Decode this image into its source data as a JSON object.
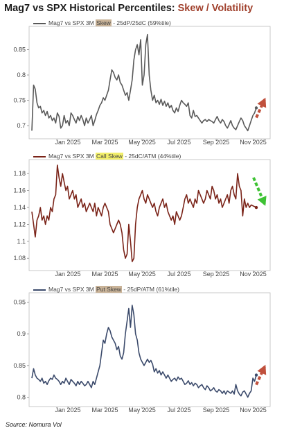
{
  "title_main": "Mag7 vs SPX Historical Percentiles: ",
  "title_highlight": "Skew / Volatility",
  "source": "Source: Nomura Vol",
  "chart_data": [
    {
      "type": "line",
      "legend_pre": "Mag7 vs SPX 3M ",
      "legend_mark": "Skew",
      "legend_post": " - 25dP/25dC (59%tile)",
      "mark_color": "#c9b398",
      "line_color": "#595959",
      "arrow_color": "#c0503c",
      "arrow_dir": "up",
      "xticks": [
        "Jan 2025",
        "Mar 2025",
        "May 2025",
        "Jul 2025",
        "Sep 2025",
        "Nov 2025"
      ],
      "yticks": [
        0.7,
        0.75,
        0.8,
        0.85
      ],
      "ylim": [
        0.685,
        0.885
      ],
      "y": [
        0.69,
        0.78,
        0.772,
        0.745,
        0.735,
        0.738,
        0.725,
        0.73,
        0.72,
        0.728,
        0.715,
        0.72,
        0.71,
        0.715,
        0.705,
        0.725,
        0.718,
        0.695,
        0.7,
        0.72,
        0.705,
        0.71,
        0.7,
        0.725,
        0.72,
        0.712,
        0.705,
        0.718,
        0.71,
        0.72,
        0.712,
        0.7,
        0.715,
        0.705,
        0.712,
        0.72,
        0.7,
        0.71,
        0.722,
        0.73,
        0.74,
        0.745,
        0.755,
        0.75,
        0.76,
        0.77,
        0.79,
        0.81,
        0.805,
        0.795,
        0.79,
        0.8,
        0.785,
        0.78,
        0.77,
        0.76,
        0.765,
        0.75,
        0.77,
        0.79,
        0.83,
        0.85,
        0.86,
        0.84,
        0.87,
        0.78,
        0.8,
        0.86,
        0.88,
        0.8,
        0.77,
        0.75,
        0.76,
        0.745,
        0.75,
        0.742,
        0.752,
        0.74,
        0.748,
        0.738,
        0.745,
        0.735,
        0.74,
        0.73,
        0.725,
        0.735,
        0.728,
        0.74,
        0.75,
        0.745,
        0.742,
        0.738,
        0.745,
        0.72,
        0.715,
        0.73,
        0.718,
        0.72,
        0.715,
        0.71,
        0.705,
        0.71,
        0.712,
        0.708,
        0.712,
        0.71,
        0.708,
        0.705,
        0.712,
        0.718,
        0.71,
        0.705,
        0.712,
        0.708,
        0.7,
        0.695,
        0.702,
        0.71,
        0.7,
        0.695,
        0.692,
        0.7,
        0.708,
        0.715,
        0.71,
        0.7,
        0.695,
        0.69,
        0.7,
        0.71,
        0.72,
        0.725,
        0.735
      ]
    },
    {
      "type": "line",
      "legend_pre": "Mag7 vs SPX 3M ",
      "legend_mark": "Call Skew",
      "legend_post": " - 25dC/ATM (44%tile)",
      "mark_color": "#f2ef6a",
      "line_color": "#7a2318",
      "arrow_color": "#3ec234",
      "arrow_dir": "down",
      "xticks": [
        "Jan 2025",
        "Mar 2025",
        "May 2025",
        "Jul 2025",
        "Sep 2025",
        "Nov 2025"
      ],
      "yticks": [
        1.08,
        1.1,
        1.12,
        1.14,
        1.16,
        1.18
      ],
      "ylim": [
        1.072,
        1.19
      ],
      "y": [
        1.135,
        1.12,
        1.105,
        1.125,
        1.13,
        1.14,
        1.125,
        1.13,
        1.12,
        1.13,
        1.125,
        1.14,
        1.135,
        1.15,
        1.155,
        1.19,
        1.175,
        1.165,
        1.18,
        1.17,
        1.16,
        1.165,
        1.15,
        1.155,
        1.16,
        1.15,
        1.155,
        1.14,
        1.145,
        1.15,
        1.14,
        1.145,
        1.135,
        1.14,
        1.145,
        1.14,
        1.135,
        1.145,
        1.13,
        1.14,
        1.135,
        1.13,
        1.14,
        1.145,
        1.14,
        1.135,
        1.12,
        1.115,
        1.11,
        1.115,
        1.12,
        1.125,
        1.12,
        1.11,
        1.09,
        1.08,
        1.085,
        1.12,
        1.1,
        1.076,
        1.08,
        1.12,
        1.14,
        1.15,
        1.155,
        1.16,
        1.15,
        1.145,
        1.155,
        1.15,
        1.145,
        1.14,
        1.145,
        1.135,
        1.13,
        1.14,
        1.145,
        1.15,
        1.14,
        1.145,
        1.135,
        1.13,
        1.125,
        1.13,
        1.12,
        1.135,
        1.13,
        1.125,
        1.13,
        1.14,
        1.15,
        1.155,
        1.145,
        1.15,
        1.145,
        1.14,
        1.15,
        1.145,
        1.16,
        1.155,
        1.15,
        1.145,
        1.15,
        1.16,
        1.155,
        1.15,
        1.165,
        1.16,
        1.15,
        1.155,
        1.145,
        1.15,
        1.14,
        1.145,
        1.15,
        1.155,
        1.145,
        1.16,
        1.165,
        1.155,
        1.15,
        1.18,
        1.165,
        1.16,
        1.13,
        1.15,
        1.14,
        1.145,
        1.14,
        1.143,
        1.142,
        1.141,
        1.14
      ]
    },
    {
      "type": "line",
      "legend_pre": "Mag7 vs SPX 3M ",
      "legend_mark": "Put Skew",
      "legend_post": " - 25dP/ATM (61%tile)",
      "mark_color": "#c9b398",
      "line_color": "#3b4a6b",
      "arrow_color": "#c0503c",
      "arrow_dir": "up",
      "xticks": [
        "Jan 2025",
        "Mar 2025",
        "May 2025",
        "Jul 2025",
        "Sep 2025",
        "Nov 2025"
      ],
      "yticks": [
        0.8,
        0.85,
        0.9,
        0.95
      ],
      "ylim": [
        0.794,
        0.956
      ],
      "y": [
        0.83,
        0.845,
        0.835,
        0.83,
        0.828,
        0.825,
        0.83,
        0.822,
        0.825,
        0.82,
        0.826,
        0.83,
        0.828,
        0.835,
        0.83,
        0.828,
        0.825,
        0.82,
        0.825,
        0.822,
        0.83,
        0.825,
        0.82,
        0.828,
        0.825,
        0.822,
        0.818,
        0.825,
        0.82,
        0.825,
        0.822,
        0.818,
        0.82,
        0.825,
        0.82,
        0.815,
        0.825,
        0.82,
        0.83,
        0.84,
        0.85,
        0.87,
        0.89,
        0.885,
        0.9,
        0.91,
        0.905,
        0.895,
        0.89,
        0.885,
        0.875,
        0.88,
        0.865,
        0.86,
        0.87,
        0.9,
        0.92,
        0.94,
        0.91,
        0.945,
        0.93,
        0.9,
        0.89,
        0.87,
        0.86,
        0.855,
        0.85,
        0.855,
        0.86,
        0.855,
        0.858,
        0.852,
        0.84,
        0.845,
        0.838,
        0.842,
        0.835,
        0.84,
        0.835,
        0.83,
        0.835,
        0.83,
        0.825,
        0.828,
        0.83,
        0.826,
        0.832,
        0.828,
        0.83,
        0.825,
        0.82,
        0.822,
        0.826,
        0.82,
        0.823,
        0.818,
        0.822,
        0.82,
        0.815,
        0.818,
        0.82,
        0.815,
        0.812,
        0.818,
        0.815,
        0.81,
        0.812,
        0.815,
        0.81,
        0.808,
        0.812,
        0.81,
        0.806,
        0.81,
        0.805,
        0.81,
        0.808,
        0.806,
        0.81,
        0.805,
        0.82,
        0.81,
        0.805,
        0.802,
        0.808,
        0.81,
        0.805,
        0.8,
        0.806,
        0.81,
        0.83,
        0.825,
        0.835
      ]
    }
  ]
}
